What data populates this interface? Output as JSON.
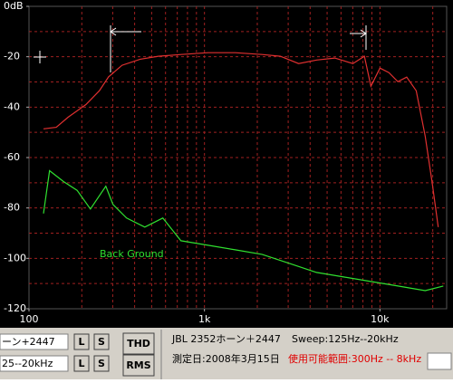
{
  "chart_data": {
    "type": "line",
    "log_x": true,
    "xlim": [
      100,
      24000
    ],
    "ylim": [
      -120,
      0
    ],
    "xticks": [
      100,
      {
        "value": 1000,
        "label": "1k"
      },
      {
        "value": 10000,
        "label": "10k"
      }
    ],
    "yticks": [
      {
        "value": 0,
        "label": "0dB"
      },
      -20,
      -40,
      -60,
      -80,
      -100,
      -120
    ],
    "xgrid": [
      200,
      300,
      400,
      500,
      600,
      700,
      800,
      900,
      1000,
      2000,
      3000,
      4000,
      5000,
      6000,
      7000,
      8000,
      9000,
      10000,
      20000
    ],
    "ygrid": [
      -10,
      -20,
      -30,
      -40,
      -50,
      -60,
      -70,
      -80,
      -90,
      -100,
      -110
    ],
    "grid": true,
    "annotation": "Back Ground",
    "series": [
      {
        "color": "#e03030",
        "x": [
          121,
          143,
          167,
          211,
          252,
          284,
          339,
          430,
          546,
          736,
          1048,
          1497,
          2128,
          2705,
          3440,
          4360,
          5530,
          7010,
          8150,
          8880,
          10000,
          11250,
          12640,
          14200,
          16100,
          18100,
          19800,
          21500
        ],
        "values": [
          -48.6,
          -48,
          -44,
          -39,
          -33.5,
          -28,
          -23.4,
          -21,
          -19.8,
          -19.1,
          -18.4,
          -18.4,
          -19.1,
          -19.8,
          -22.7,
          -21.3,
          -20.5,
          -22.7,
          -19.8,
          -31.7,
          -24.5,
          -26.3,
          -29.9,
          -28.1,
          -33.5,
          -51.5,
          -69.5,
          -87.6
        ]
      },
      {
        "color": "#30e030",
        "x": [
          121,
          131,
          157,
          188,
          224,
          274,
          301,
          360,
          457,
          579,
          734,
          1049,
          1497,
          2128,
          3052,
          4355,
          6220,
          8870,
          12680,
          18100,
          22960
        ],
        "values": [
          -82.2,
          -65.2,
          -69.5,
          -73,
          -80.4,
          -71.4,
          -78.6,
          -84,
          -87.6,
          -84,
          -93,
          -94.8,
          -96.6,
          -98.4,
          -102,
          -105.6,
          -107.4,
          -109.2,
          -111,
          -112.8,
          -111
        ]
      }
    ]
  },
  "panel": {
    "input_1": "ーン+2447",
    "input_2": "25--20kHz",
    "button_l": "L",
    "button_s": "S",
    "button_thd": "THD",
    "button_rms": "RMS",
    "speaker": "JBL 2352ホーン＋2447",
    "sweep": "Sweep:125Hz--20kHz",
    "date": "測定日:2008年3月15日",
    "range": "使用可能範囲:300Hz -- 8kHz"
  }
}
